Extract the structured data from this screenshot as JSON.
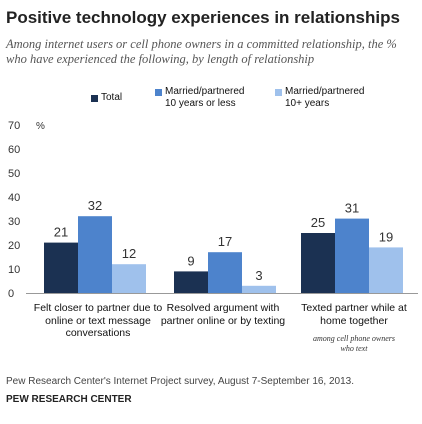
{
  "title": "Positive technology experiences in relationships",
  "subtitle": "Among internet users or cell phone owners in a committed relationship, the % who have experienced the following, by length of relationship",
  "source": "Pew Research Center's Internet Project survey, August 7-September 16, 2013.",
  "organization": "PEW RESEARCH CENTER",
  "chart_data": {
    "type": "bar",
    "categories": [
      "Felt closer to partner due to online or text message conversations",
      "Resolved argument with partner online or by texting",
      "Texted partner while at home together"
    ],
    "category_notes": [
      "",
      "",
      "among cell phone owners who text"
    ],
    "series": [
      {
        "name": "Total",
        "values": [
          21,
          9,
          25
        ],
        "color": "#1b3152"
      },
      {
        "name": "Married/partnered 10 years or less",
        "values": [
          32,
          17,
          31
        ],
        "color": "#4d83cc"
      },
      {
        "name": "Married/partnered 10+ years",
        "values": [
          12,
          3,
          19
        ],
        "color": "#9fc1ec"
      }
    ],
    "ylim": [
      0,
      70
    ],
    "yticks": [
      0,
      10,
      20,
      30,
      40,
      50,
      60,
      70
    ],
    "yunit": "%",
    "legend_position": "top",
    "grid": false
  }
}
